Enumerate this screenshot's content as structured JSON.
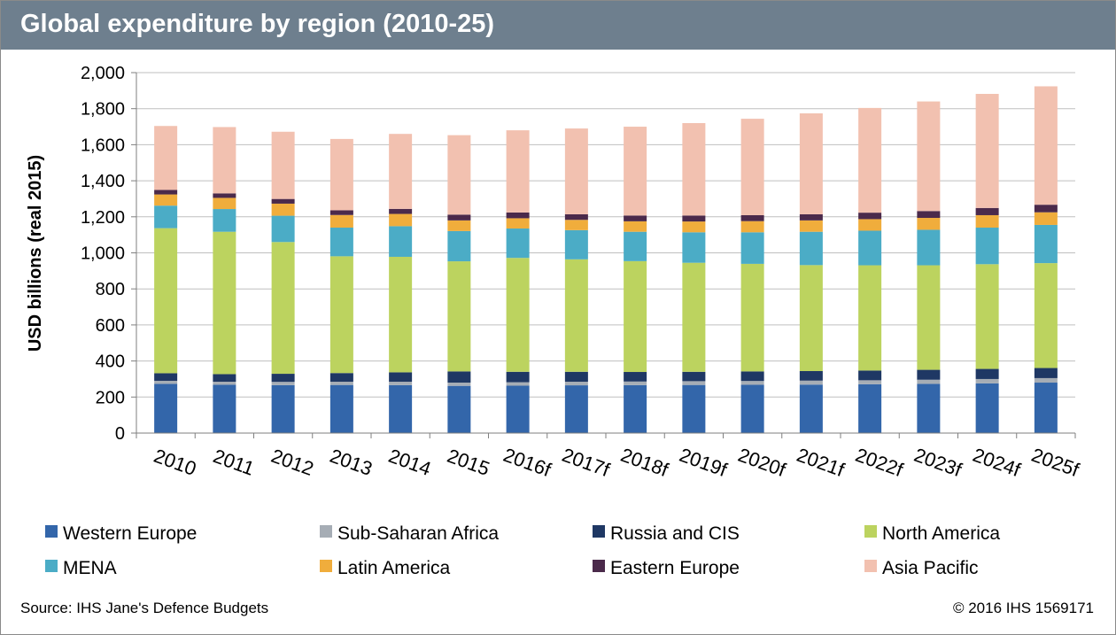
{
  "header": {
    "title": "Global expenditure by region (2010-25)"
  },
  "footer": {
    "source": "Source: IHS Jane's Defence Budgets",
    "copyright": "© 2016 IHS    1569171"
  },
  "colors": {
    "header_bg": "#6e7f8e",
    "axis": "#7f7f7f",
    "grid": "#bfbfbf"
  },
  "chart_data": {
    "type": "bar",
    "stacked": true,
    "title": "Global expenditure by region (2010-25)",
    "ylabel": "USD billions (real 2015)",
    "xlabel": "",
    "ylim": [
      0,
      2000
    ],
    "yticks": [
      0,
      200,
      400,
      600,
      800,
      1000,
      1200,
      1400,
      1600,
      1800,
      2000
    ],
    "ytick_labels": [
      "0",
      "200",
      "400",
      "600",
      "800",
      "1,000",
      "1,200",
      "1,400",
      "1,600",
      "1,800",
      "2,000"
    ],
    "grid": true,
    "legend_position": "bottom",
    "categories": [
      "2010",
      "2011",
      "2012",
      "2013",
      "2014",
      "2015",
      "2016f",
      "2017f",
      "2018f",
      "2019f",
      "2020f",
      "2021f",
      "2022f",
      "2023f",
      "2024f",
      "2025f"
    ],
    "series": [
      {
        "name": "Western Europe",
        "color": "#3366aa",
        "values": [
          273,
          268,
          266,
          267,
          266,
          262,
          263,
          265,
          266,
          267,
          268,
          269,
          271,
          273,
          276,
          280
        ]
      },
      {
        "name": "Sub-Saharan Africa",
        "color": "#a6adb5",
        "values": [
          17,
          17,
          18,
          18,
          19,
          18,
          19,
          20,
          20,
          21,
          21,
          22,
          22,
          23,
          24,
          25
        ]
      },
      {
        "name": "Russia and CIS",
        "color": "#1f3864",
        "values": [
          42,
          42,
          45,
          48,
          52,
          62,
          58,
          55,
          53,
          52,
          53,
          53,
          54,
          55,
          56,
          56
        ]
      },
      {
        "name": "North America",
        "color": "#bcd35f",
        "values": [
          805,
          790,
          731,
          648,
          641,
          611,
          632,
          624,
          615,
          605,
          597,
          588,
          584,
          580,
          581,
          582
        ]
      },
      {
        "name": "MENA",
        "color": "#4bacc6",
        "values": [
          125,
          126,
          146,
          159,
          170,
          168,
          163,
          162,
          163,
          169,
          175,
          185,
          192,
          197,
          203,
          212
        ]
      },
      {
        "name": "Latin America",
        "color": "#f0ad3c",
        "values": [
          62,
          62,
          67,
          70,
          68,
          59,
          57,
          57,
          58,
          60,
          62,
          63,
          64,
          66,
          69,
          70
        ]
      },
      {
        "name": "Eastern Europe",
        "color": "#4b2a4b",
        "values": [
          25,
          25,
          26,
          26,
          28,
          32,
          32,
          31,
          32,
          33,
          33,
          34,
          36,
          38,
          40,
          42
        ]
      },
      {
        "name": "Asia Pacific",
        "color": "#f2c1b0",
        "values": [
          355,
          368,
          373,
          396,
          416,
          441,
          456,
          476,
          493,
          513,
          535,
          560,
          581,
          608,
          633,
          657
        ]
      }
    ]
  }
}
